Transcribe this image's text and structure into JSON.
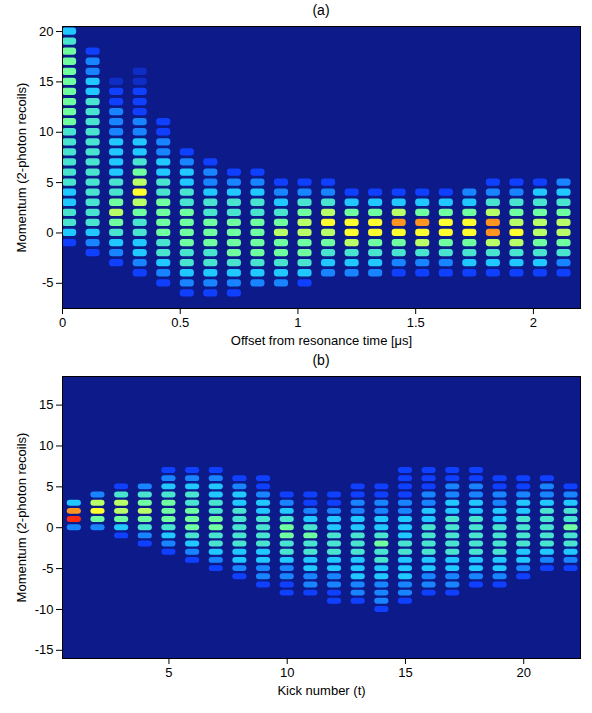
{
  "chart_data": [
    {
      "type": "heatmap",
      "title": "(a)",
      "x_label": "Offset from resonance time [μs]",
      "y_label": "Momentum (2-photon recoils)",
      "xlim": [
        0,
        2.2
      ],
      "xticks": [
        0,
        0.5,
        1,
        1.5,
        2
      ],
      "ylim": [
        -7.5,
        20.5
      ],
      "yticks": [
        -5,
        0,
        5,
        10,
        15,
        20
      ],
      "zlim": [
        0,
        10
      ],
      "columns": [
        {
          "x": 0.03,
          "p_start": -1,
          "intensity": [
            2,
            4,
            5,
            5,
            4,
            4,
            5,
            5,
            5,
            5,
            5,
            5,
            6,
            6,
            6,
            6,
            6,
            6,
            6,
            6,
            5,
            4
          ]
        },
        {
          "x": 0.13,
          "p_start": -2,
          "intensity": [
            2,
            3,
            4,
            5,
            5,
            5,
            5,
            5,
            5,
            5,
            5,
            5,
            5,
            5,
            5,
            5,
            4,
            4,
            3,
            3,
            2
          ]
        },
        {
          "x": 0.23,
          "p_start": -3,
          "intensity": [
            2,
            3,
            4,
            5,
            6,
            7,
            6,
            5,
            5,
            4,
            4,
            4,
            4,
            3,
            3,
            3,
            2,
            2,
            1
          ]
        },
        {
          "x": 0.33,
          "p_start": -4,
          "intensity": [
            2,
            3,
            4,
            4,
            5,
            5,
            6,
            7,
            8,
            7,
            6,
            5,
            4,
            4,
            3,
            3,
            2,
            2,
            2,
            1,
            1
          ]
        },
        {
          "x": 0.43,
          "p_start": -5,
          "intensity": [
            2,
            3,
            4,
            5,
            5,
            6,
            6,
            6,
            6,
            5,
            5,
            4,
            4,
            3,
            3,
            2,
            2
          ]
        },
        {
          "x": 0.53,
          "p_start": -6,
          "intensity": [
            2,
            3,
            4,
            5,
            5,
            6,
            6,
            6,
            6,
            5,
            5,
            4,
            4,
            3,
            2
          ]
        },
        {
          "x": 0.63,
          "p_start": -6,
          "intensity": [
            2,
            3,
            4,
            5,
            5,
            6,
            6,
            6,
            5,
            5,
            4,
            3,
            3,
            2
          ]
        },
        {
          "x": 0.73,
          "p_start": -6,
          "intensity": [
            2,
            3,
            4,
            5,
            6,
            6,
            6,
            6,
            5,
            5,
            4,
            3,
            2
          ]
        },
        {
          "x": 0.83,
          "p_start": -5,
          "intensity": [
            3,
            4,
            5,
            6,
            6,
            6,
            6,
            5,
            5,
            4,
            3,
            2
          ]
        },
        {
          "x": 0.93,
          "p_start": -5,
          "intensity": [
            3,
            4,
            5,
            6,
            6,
            7,
            6,
            5,
            4,
            3,
            2
          ]
        },
        {
          "x": 1.03,
          "p_start": -5,
          "intensity": [
            2,
            4,
            5,
            6,
            6,
            7,
            7,
            6,
            5,
            3,
            2
          ]
        },
        {
          "x": 1.13,
          "p_start": -4,
          "intensity": [
            3,
            4,
            5,
            6,
            7,
            8,
            7,
            5,
            3,
            2
          ]
        },
        {
          "x": 1.23,
          "p_start": -4,
          "intensity": [
            3,
            4,
            5,
            7,
            8,
            8,
            6,
            4,
            2
          ]
        },
        {
          "x": 1.33,
          "p_start": -4,
          "intensity": [
            3,
            4,
            5,
            6,
            8,
            8,
            6,
            4,
            2
          ]
        },
        {
          "x": 1.43,
          "p_start": -4,
          "intensity": [
            2,
            3,
            5,
            6,
            8,
            9,
            7,
            4,
            2
          ]
        },
        {
          "x": 1.53,
          "p_start": -4,
          "intensity": [
            2,
            3,
            5,
            7,
            8,
            9,
            6,
            4,
            2
          ]
        },
        {
          "x": 1.63,
          "p_start": -4,
          "intensity": [
            2,
            3,
            5,
            6,
            8,
            8,
            6,
            4,
            2
          ]
        },
        {
          "x": 1.73,
          "p_start": -4,
          "intensity": [
            2,
            4,
            5,
            6,
            8,
            8,
            6,
            4,
            3
          ]
        },
        {
          "x": 1.83,
          "p_start": -4,
          "intensity": [
            2,
            4,
            5,
            7,
            9,
            9,
            7,
            5,
            3,
            2
          ]
        },
        {
          "x": 1.93,
          "p_start": -4,
          "intensity": [
            2,
            4,
            5,
            7,
            8,
            7,
            6,
            5,
            3,
            2
          ]
        },
        {
          "x": 2.03,
          "p_start": -4,
          "intensity": [
            2,
            4,
            5,
            6,
            7,
            7,
            6,
            5,
            4,
            2
          ]
        },
        {
          "x": 2.13,
          "p_start": -4,
          "intensity": [
            2,
            3,
            5,
            6,
            7,
            7,
            6,
            5,
            4,
            3
          ]
        }
      ]
    },
    {
      "type": "heatmap",
      "title": "(b)",
      "x_label": "Kick number (t)",
      "y_label": "Momentum (2-photon recoils)",
      "xlim": [
        0.5,
        22.4
      ],
      "xticks": [
        5,
        10,
        15,
        20
      ],
      "ylim": [
        -16,
        18.5
      ],
      "yticks": [
        -15,
        -10,
        -5,
        0,
        5,
        10,
        15
      ],
      "zlim": [
        0,
        10
      ],
      "columns": [
        {
          "x": 1,
          "p_start": 0,
          "intensity": [
            3,
            10,
            9,
            4
          ]
        },
        {
          "x": 2,
          "p_start": 0,
          "intensity": [
            3,
            6,
            8,
            7,
            3
          ]
        },
        {
          "x": 3,
          "p_start": -1,
          "intensity": [
            2,
            4,
            6,
            7,
            7,
            5,
            2
          ]
        },
        {
          "x": 4,
          "p_start": -2,
          "intensity": [
            2,
            3,
            5,
            6,
            7,
            6,
            5,
            3
          ]
        },
        {
          "x": 5,
          "p_start": -3,
          "intensity": [
            2,
            3,
            4,
            5,
            6,
            6,
            6,
            5,
            4,
            3,
            2
          ]
        },
        {
          "x": 6,
          "p_start": -4,
          "intensity": [
            2,
            3,
            4,
            5,
            6,
            6,
            6,
            5,
            5,
            4,
            3,
            2
          ]
        },
        {
          "x": 7,
          "p_start": -5,
          "intensity": [
            2,
            3,
            4,
            5,
            5,
            6,
            6,
            5,
            5,
            4,
            4,
            3,
            2
          ]
        },
        {
          "x": 8,
          "p_start": -6,
          "intensity": [
            2,
            3,
            4,
            4,
            5,
            5,
            5,
            5,
            5,
            4,
            4,
            3,
            2
          ]
        },
        {
          "x": 9,
          "p_start": -7,
          "intensity": [
            2,
            3,
            3,
            4,
            4,
            5,
            5,
            5,
            5,
            4,
            4,
            3,
            2,
            2
          ]
        },
        {
          "x": 10,
          "p_start": -8,
          "intensity": [
            2,
            2,
            3,
            3,
            4,
            5,
            5,
            6,
            6,
            5,
            4,
            3,
            2
          ]
        },
        {
          "x": 11,
          "p_start": -8,
          "intensity": [
            2,
            3,
            3,
            4,
            4,
            5,
            5,
            6,
            5,
            4,
            3,
            2,
            2
          ]
        },
        {
          "x": 12,
          "p_start": -9,
          "intensity": [
            2,
            2,
            3,
            3,
            4,
            4,
            5,
            5,
            5,
            4,
            4,
            3,
            2,
            2
          ]
        },
        {
          "x": 13,
          "p_start": -9,
          "intensity": [
            2,
            3,
            3,
            4,
            4,
            4,
            5,
            5,
            5,
            4,
            4,
            3,
            3,
            2,
            2
          ]
        },
        {
          "x": 14,
          "p_start": -10,
          "intensity": [
            2,
            3,
            3,
            3,
            4,
            4,
            5,
            5,
            6,
            5,
            4,
            4,
            3,
            3,
            2,
            2
          ]
        },
        {
          "x": 15,
          "p_start": -9,
          "intensity": [
            2,
            3,
            3,
            4,
            4,
            4,
            5,
            5,
            4,
            4,
            4,
            3,
            3,
            2,
            2,
            2,
            2
          ]
        },
        {
          "x": 16,
          "p_start": -8,
          "intensity": [
            2,
            3,
            3,
            4,
            4,
            5,
            5,
            5,
            5,
            4,
            4,
            3,
            3,
            2,
            2,
            2
          ]
        },
        {
          "x": 17,
          "p_start": -8,
          "intensity": [
            2,
            3,
            3,
            4,
            4,
            5,
            5,
            5,
            5,
            5,
            4,
            4,
            3,
            3,
            2,
            2
          ]
        },
        {
          "x": 18,
          "p_start": -7,
          "intensity": [
            2,
            3,
            4,
            4,
            5,
            5,
            5,
            5,
            5,
            4,
            4,
            3,
            3,
            2,
            2
          ]
        },
        {
          "x": 19,
          "p_start": -7,
          "intensity": [
            2,
            3,
            4,
            4,
            5,
            5,
            5,
            5,
            4,
            4,
            3,
            3,
            2,
            2
          ]
        },
        {
          "x": 20,
          "p_start": -6,
          "intensity": [
            2,
            3,
            4,
            4,
            5,
            5,
            5,
            5,
            4,
            4,
            3,
            2,
            2
          ]
        },
        {
          "x": 21,
          "p_start": -5,
          "intensity": [
            2,
            3,
            4,
            5,
            5,
            5,
            5,
            5,
            4,
            3,
            3,
            2
          ]
        },
        {
          "x": 22,
          "p_start": -5,
          "intensity": [
            2,
            3,
            4,
            5,
            5,
            6,
            5,
            5,
            4,
            3,
            2
          ]
        }
      ]
    }
  ]
}
